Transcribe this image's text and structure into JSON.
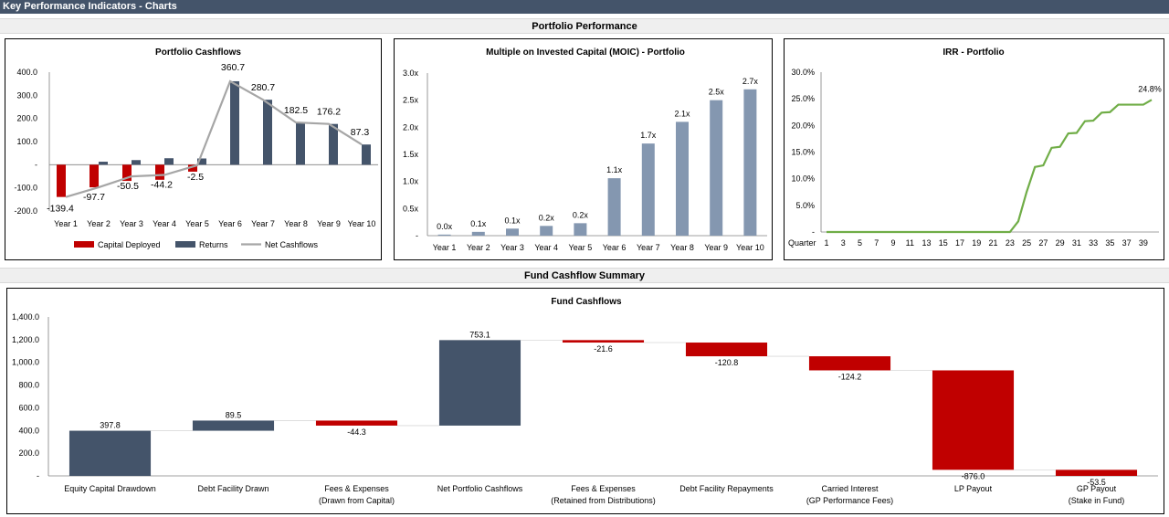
{
  "page_title": "Key Performance Indicators - Charts",
  "sections": {
    "portfolio": "Portfolio Performance",
    "fund": "Fund Cashflow Summary"
  },
  "colors": {
    "navy": "#44546a",
    "red": "#c00000",
    "grey_line": "#a6a6a6",
    "moic_bar": "#8497b0",
    "irr_line": "#70ad47",
    "header_bar": "#44546a"
  },
  "chart_data": [
    {
      "type": "bar",
      "title": "Portfolio Cashflows",
      "categories": [
        "Year 1",
        "Year 2",
        "Year 3",
        "Year 4",
        "Year 5",
        "Year 6",
        "Year 7",
        "Year 8",
        "Year 9",
        "Year 10"
      ],
      "series": [
        {
          "name": "Capital Deployed",
          "values": [
            -139.4,
            -97.7,
            -70,
            -65,
            -30,
            0,
            0,
            0,
            0,
            0
          ]
        },
        {
          "name": "Returns",
          "values": [
            0,
            13,
            20,
            28,
            27,
            360.7,
            280.7,
            182.5,
            176.2,
            87.3
          ]
        },
        {
          "name": "Net Cashflows",
          "values": [
            -139.4,
            -97.7,
            -50.5,
            -44.2,
            -2.5,
            360.7,
            280.7,
            182.5,
            176.2,
            87.3
          ]
        }
      ],
      "data_labels": [
        "-139.4",
        "-97.7",
        "-50.5",
        "-44.2",
        "-2.5",
        "360.7",
        "280.7",
        "182.5",
        "176.2",
        "87.3"
      ],
      "y_ticks": [
        "400.0",
        "300.0",
        "200.0",
        "100.0",
        "-",
        "-100.0",
        "-200.0"
      ],
      "ylim": [
        -200,
        400
      ]
    },
    {
      "type": "bar",
      "title": "Multiple on Invested Capital (MOIC) - Portfolio",
      "categories": [
        "Year 1",
        "Year 2",
        "Year 3",
        "Year 4",
        "Year 5",
        "Year 6",
        "Year 7",
        "Year 8",
        "Year 9",
        "Year 10"
      ],
      "values": [
        0.02,
        0.07,
        0.13,
        0.18,
        0.23,
        1.06,
        1.7,
        2.1,
        2.5,
        2.7
      ],
      "data_labels": [
        "0.0x",
        "0.1x",
        "0.1x",
        "0.2x",
        "0.2x",
        "1.1x",
        "1.7x",
        "2.1x",
        "2.5x",
        "2.7x"
      ],
      "y_ticks": [
        "3.0x",
        "2.5x",
        "2.0x",
        "1.5x",
        "1.0x",
        "0.5x",
        "-"
      ],
      "ylim": [
        0,
        3
      ]
    },
    {
      "type": "line",
      "title": "IRR - Portfolio",
      "xlabel": "Quarter",
      "x_ticks": [
        "1",
        "3",
        "5",
        "7",
        "9",
        "11",
        "13",
        "15",
        "17",
        "19",
        "21",
        "23",
        "25",
        "27",
        "29",
        "31",
        "33",
        "35",
        "37",
        "39"
      ],
      "x": [
        1,
        2,
        3,
        4,
        5,
        6,
        7,
        8,
        9,
        10,
        11,
        12,
        13,
        14,
        15,
        16,
        17,
        18,
        19,
        20,
        21,
        22,
        23,
        24,
        25,
        26,
        27,
        28,
        29,
        30,
        31,
        32,
        33,
        34,
        35,
        36,
        37,
        38,
        39,
        40
      ],
      "values": [
        0,
        0,
        0,
        0,
        0,
        0,
        0,
        0,
        0,
        0,
        0,
        0,
        0,
        0,
        0,
        0,
        0,
        0,
        0,
        0,
        0,
        0,
        0,
        2,
        7.5,
        12.2,
        12.5,
        15.8,
        16,
        18.5,
        18.6,
        20.8,
        20.9,
        22.4,
        22.5,
        23.9,
        23.9,
        23.9,
        23.9,
        24.8
      ],
      "end_label": "24.8%",
      "y_ticks": [
        "30.0%",
        "25.0%",
        "20.0%",
        "15.0%",
        "10.0%",
        "5.0%",
        "-"
      ],
      "ylim": [
        0,
        30
      ]
    },
    {
      "type": "bar",
      "subtype": "waterfall",
      "title": "Fund Cashflows",
      "categories": [
        [
          "Equity Capital Drawdown"
        ],
        [
          "Debt Facility Drawn"
        ],
        [
          "Fees & Expenses",
          "(Drawn from Capital)"
        ],
        [
          "Net Portfolio Cashflows"
        ],
        [
          "Fees & Expenses",
          "(Retained from Distributions)"
        ],
        [
          "Debt Facility Repayments"
        ],
        [
          "Carried Interest",
          "(GP Performance Fees)"
        ],
        [
          "LP Payout"
        ],
        [
          "GP Payout",
          "(Stake in Fund)"
        ]
      ],
      "values": [
        397.8,
        89.5,
        -44.3,
        753.1,
        -21.6,
        -120.8,
        -124.2,
        -876.0,
        -53.5
      ],
      "data_labels": [
        "397.8",
        "89.5",
        "-44.3",
        "753.1",
        "-21.6",
        "-120.8",
        "-124.2",
        "-876.0",
        "-53.5"
      ],
      "y_ticks": [
        "1,400.0",
        "1,200.0",
        "1,000.0",
        "800.0",
        "600.0",
        "400.0",
        "200.0",
        "-"
      ],
      "ylim": [
        0,
        1400
      ]
    }
  ]
}
